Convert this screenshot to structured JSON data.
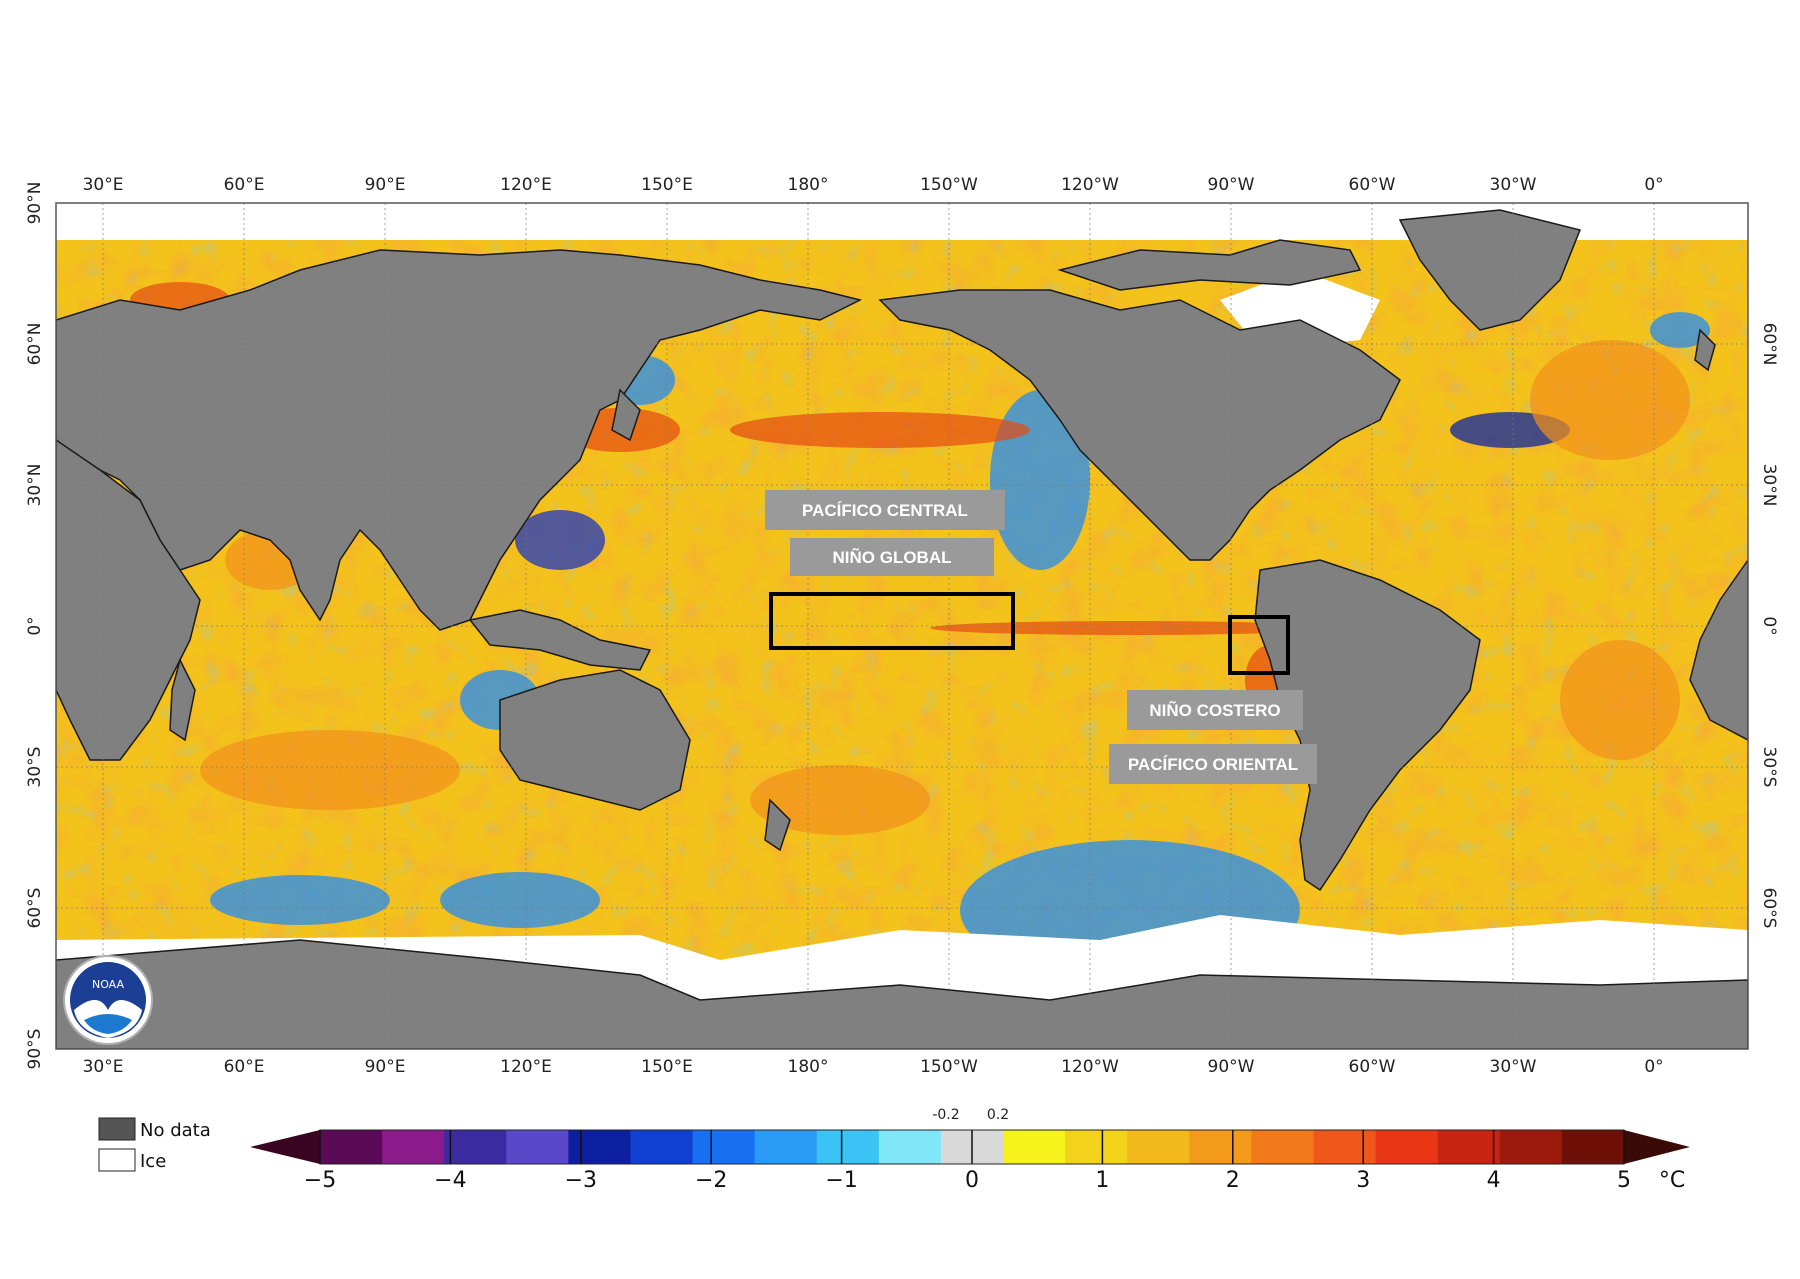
{
  "map": {
    "lon_ticks": [
      "30°E",
      "60°E",
      "90°E",
      "120°E",
      "150°E",
      "180°",
      "150°W",
      "120°W",
      "90°W",
      "60°W",
      "30°W",
      "0°"
    ],
    "lat_ticks_left": [
      "90°N",
      "60°N",
      "30°N",
      "0°",
      "30°S",
      "60°S",
      "90°S"
    ],
    "lat_ticks_right": [
      "60°N",
      "30°N",
      "0°",
      "30°S",
      "60°S"
    ],
    "land_color": "#808080",
    "ice_color": "#ffffff",
    "ocean_base_color": "#f3c21b"
  },
  "regions": {
    "pacifico_central": "PACÍFICO CENTRAL",
    "nino_global": "NIÑO GLOBAL",
    "nino_costero": "NIÑO COSTERO",
    "pacifico_oriental": "PACÍFICO ORIENTAL"
  },
  "legend": {
    "no_data": "No data",
    "ice": "Ice"
  },
  "colorbar": {
    "labels": [
      "−5",
      "−4",
      "−3",
      "−2",
      "−1",
      "0",
      "1",
      "2",
      "3",
      "4",
      "5"
    ],
    "neutral_low": "-0.2",
    "neutral_high": "0.2",
    "unit": "°C",
    "colors": [
      "#5a0a56",
      "#8b1a8b",
      "#3b2aa0",
      "#5a48c8",
      "#0c1f9e",
      "#1040d0",
      "#1670f0",
      "#2a9bf5",
      "#3cc3f5",
      "#7fe7f7",
      "#d9d9d9",
      "#f6f21c",
      "#f3d21c",
      "#f3b91c",
      "#f39a1c",
      "#f27a1a",
      "#ee581a",
      "#e83514",
      "#c82412",
      "#9c1a0c",
      "#6e1008"
    ]
  },
  "logo": {
    "text": "NOAA",
    "color": "#1b3f94"
  }
}
